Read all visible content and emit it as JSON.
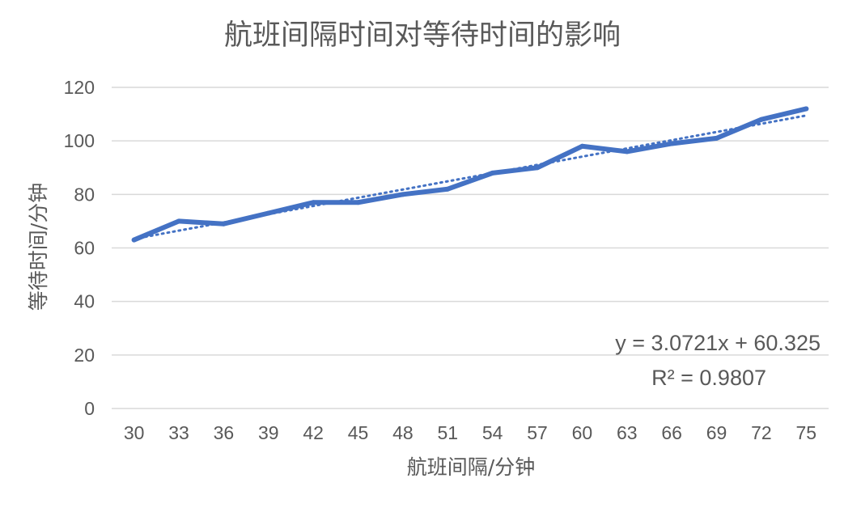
{
  "chart_data": {
    "type": "line",
    "title": "航班间隔时间对等待时间的影响",
    "xlabel": "航班间隔/分钟",
    "ylabel": "等待时间/分钟",
    "categories": [
      "30",
      "33",
      "36",
      "39",
      "42",
      "45",
      "48",
      "51",
      "54",
      "57",
      "60",
      "63",
      "66",
      "69",
      "72",
      "75"
    ],
    "series": [
      {
        "values": [
          63,
          70,
          69,
          73,
          77,
          77,
          80,
          82,
          88,
          90,
          98,
          96,
          99,
          101,
          108,
          112
        ],
        "color": "#4472c4"
      }
    ],
    "trendline": {
      "type": "linear",
      "slope": 3.0721,
      "intercept": 60.325,
      "equation": "y = 3.0721x + 60.325",
      "r_squared": "R² = 0.9807",
      "color": "#4472c4",
      "style": "dotted"
    },
    "yticks": [
      "0",
      "20",
      "40",
      "60",
      "80",
      "100",
      "120"
    ],
    "ylim": [
      0,
      120
    ],
    "grid": true,
    "legend": "none"
  }
}
